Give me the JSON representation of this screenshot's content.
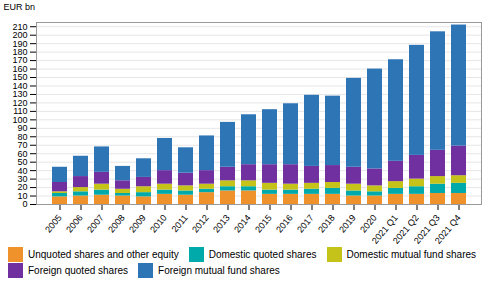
{
  "chart_data": {
    "type": "bar",
    "stacked": true,
    "categories": [
      "2005",
      "2006",
      "2007",
      "2008",
      "2009",
      "2010",
      "2011",
      "2012",
      "2013",
      "2014",
      "2015",
      "2016",
      "2017",
      "2018",
      "2019",
      "2020",
      "2021 Q1",
      "2021 Q2",
      "2021 Q3",
      "2021 Q4"
    ],
    "series": [
      {
        "name": "Unquoted shares and other equity",
        "color": "#F0922B",
        "values": [
          9,
          10,
          11,
          10,
          9,
          12,
          11,
          14,
          16,
          16,
          12,
          12,
          12,
          12,
          10,
          10,
          12,
          12,
          13,
          13
        ]
      },
      {
        "name": "Domestic quoted shares",
        "color": "#00AAAA",
        "values": [
          4,
          5,
          6,
          3,
          5,
          5,
          5,
          4,
          5,
          5,
          5,
          5,
          6,
          7,
          6,
          5,
          7,
          9,
          11,
          12
        ]
      },
      {
        "name": "Domestic mutual fund shares",
        "color": "#C5C21A",
        "values": [
          2,
          5,
          7,
          5,
          7,
          7,
          6,
          6,
          7,
          7,
          8,
          7,
          7,
          7,
          8,
          7,
          8,
          9,
          9,
          9
        ]
      },
      {
        "name": "Foreign quoted shares",
        "color": "#7030A0",
        "values": [
          11,
          13,
          14,
          10,
          11,
          16,
          15,
          16,
          16,
          19,
          22,
          23,
          20,
          20,
          20,
          20,
          24,
          28,
          31,
          35
        ]
      },
      {
        "name": "Foreign mutual fund shares",
        "color": "#2E75B6",
        "values": [
          18,
          24,
          30,
          17,
          22,
          38,
          30,
          41,
          53,
          59,
          65,
          72,
          84,
          82,
          105,
          118,
          120,
          130,
          140,
          143
        ]
      }
    ],
    "ylabel": "EUR bn",
    "ylim": [
      0,
      215
    ],
    "yticks": [
      0,
      10,
      20,
      30,
      40,
      50,
      60,
      70,
      80,
      90,
      100,
      110,
      120,
      130,
      140,
      150,
      160,
      170,
      180,
      190,
      200,
      210
    ],
    "grid": true,
    "legend": "bottom"
  }
}
